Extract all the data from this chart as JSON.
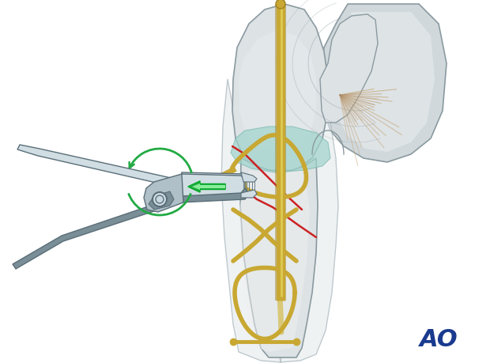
{
  "bg_color": "#ffffff",
  "ao_text": "AO",
  "ao_color": "#1a3a8f",
  "ao_fontsize": 22,
  "bone_color": "#dde2e5",
  "bone_edge": "#8a9aa0",
  "bone_inner": "#eef0f0",
  "wire_color": "#c8a832",
  "wire_lw": 4.0,
  "pin_color": "#c8a832",
  "pin_inner": "#e8d890",
  "fracture_color": "#cc2222",
  "pliers_light": "#d0dde3",
  "pliers_mid": "#b0c0c8",
  "pliers_dark": "#7a8e98",
  "pliers_edge": "#5a6e78",
  "green_color": "#22aa44",
  "teal_color": "#a0d4cc",
  "tendon_color": "#c8aa80",
  "tendon_dark": "#9a8060"
}
